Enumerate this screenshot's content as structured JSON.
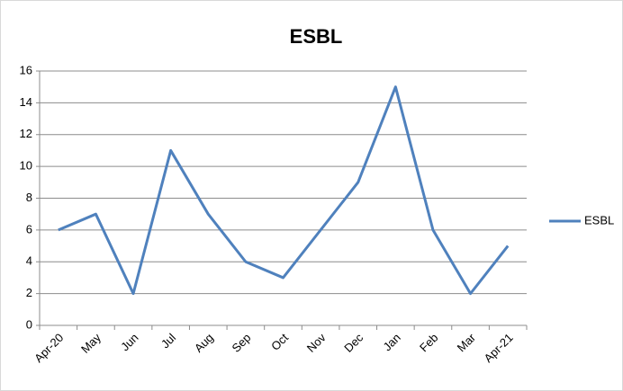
{
  "chart_data": {
    "type": "line",
    "title": "ESBL",
    "categories": [
      "Apr-20",
      "May",
      "Jun",
      "Jul",
      "Aug",
      "Sep",
      "Oct",
      "Nov",
      "Dec",
      "Jan",
      "Feb",
      "Mar",
      "Apr-21"
    ],
    "series": [
      {
        "name": "ESBL",
        "color": "#4f81bd",
        "values": [
          6,
          7,
          2,
          11,
          7,
          4,
          3,
          6,
          9,
          15,
          6,
          2,
          5
        ]
      }
    ],
    "ylim": [
      0,
      16
    ],
    "yticks": [
      0,
      2,
      4,
      6,
      8,
      10,
      12,
      14,
      16
    ],
    "grid": true,
    "legend": "right"
  }
}
